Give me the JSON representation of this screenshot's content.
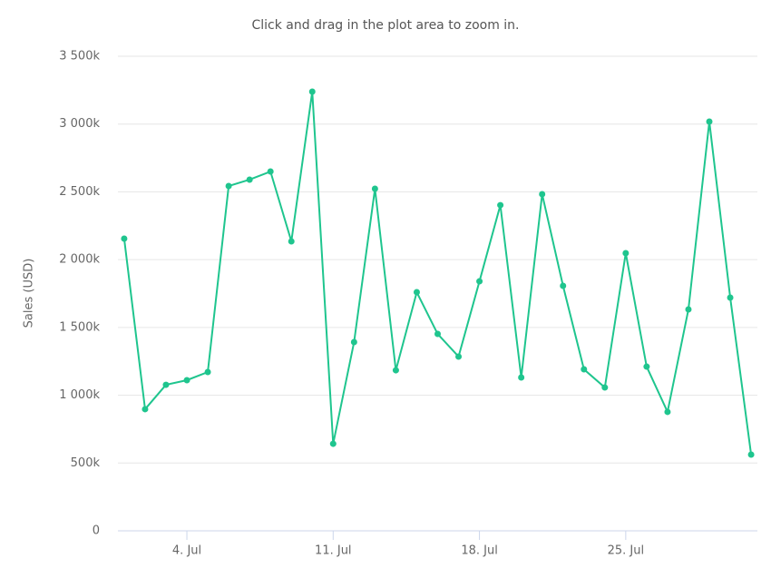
{
  "chart_data": {
    "type": "line",
    "subtitle": "Click and drag in the plot area to zoom in.",
    "y_label": "Sales (USD)",
    "x": [
      1,
      2,
      3,
      4,
      5,
      6,
      7,
      8,
      9,
      10,
      11,
      12,
      13,
      14,
      15,
      16,
      17,
      18,
      19,
      20,
      21,
      22,
      23,
      24,
      25,
      26,
      27,
      28,
      29,
      30,
      31
    ],
    "xlim": [
      0.7,
      31.3
    ],
    "xticks": [
      {
        "value": 4,
        "label": "4. Jul"
      },
      {
        "value": 11,
        "label": "11. Jul"
      },
      {
        "value": 18,
        "label": "18. Jul"
      },
      {
        "value": 25,
        "label": "25. Jul"
      }
    ],
    "series": [
      {
        "name": "Sales",
        "color": "#1fc58e",
        "values": [
          2155000,
          897000,
          1077000,
          1111000,
          1171000,
          2543000,
          2590000,
          2650000,
          2135000,
          3239000,
          642000,
          1392000,
          2523000,
          1184000,
          1760000,
          1452000,
          1285000,
          1840000,
          2402000,
          1131000,
          2483000,
          1807000,
          1191000,
          1057000,
          2048000,
          1211000,
          877000,
          1633000,
          3018000,
          1720000,
          562000
        ]
      }
    ],
    "ylim": [
      0,
      3500000
    ],
    "yticks": [
      0,
      {
        "value": 500000,
        "label": "500k"
      },
      {
        "value": 1000000,
        "label": "1 000k"
      },
      {
        "value": 1500000,
        "label": "1 500k"
      },
      {
        "value": 2000000,
        "label": "2 000k"
      },
      {
        "value": 2500000,
        "label": "2 500k"
      },
      {
        "value": 3000000,
        "label": "3 000k"
      },
      {
        "value": 3500000,
        "label": "3 500k"
      }
    ],
    "grid": true
  }
}
